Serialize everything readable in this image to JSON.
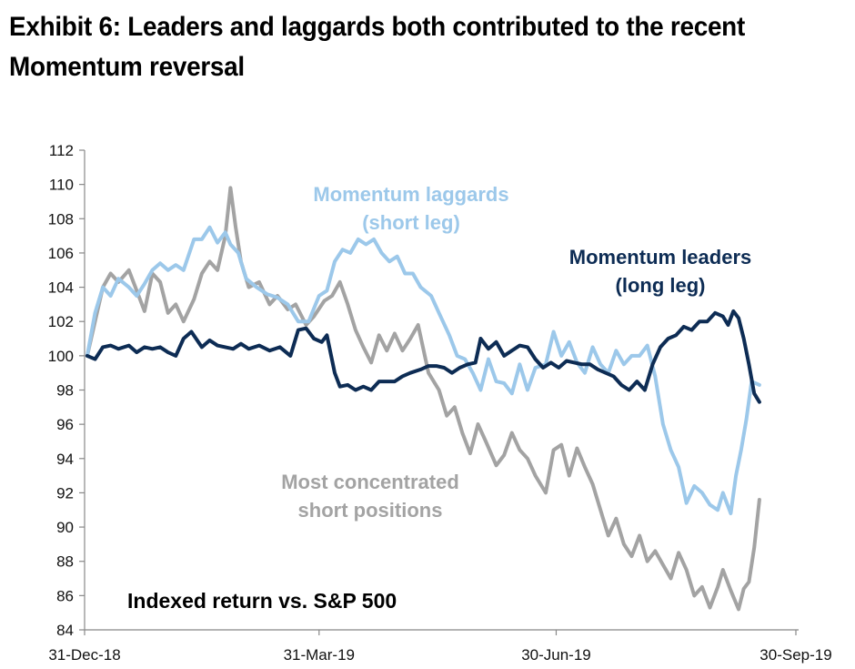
{
  "title_lines": [
    "Exhibit 6: Leaders and laggards both contributed to the recent",
    "Momentum reversal"
  ],
  "chart_data": {
    "type": "line",
    "subtitle": "Indexed return vs. S&P 500",
    "x_tick_labels": [
      "31-Dec-18",
      "31-Mar-19",
      "30-Jun-19",
      "30-Sep-19"
    ],
    "xlim": [
      "2018-12-31",
      "2019-09-30"
    ],
    "ylim": [
      84,
      112
    ],
    "y_ticks": [
      84,
      86,
      88,
      90,
      92,
      94,
      96,
      98,
      100,
      102,
      104,
      106,
      108,
      110,
      112
    ],
    "grid": false,
    "colors": {
      "leaders": "#0d2c54",
      "laggards": "#9cc8ea",
      "short": "#a3a3a3"
    },
    "annotations": [
      {
        "series": "laggards",
        "lines": [
          "Momentum laggards",
          "(short leg)"
        ]
      },
      {
        "series": "leaders",
        "lines": [
          "Momentum leaders",
          "(long leg)"
        ]
      },
      {
        "series": "short",
        "lines": [
          "Most concentrated",
          "short positions"
        ]
      }
    ],
    "series": [
      {
        "id": "short",
        "points": [
          [
            "2019-01-01",
            100.0
          ],
          [
            "2019-01-04",
            102.0
          ],
          [
            "2019-01-07",
            104.0
          ],
          [
            "2019-01-10",
            104.8
          ],
          [
            "2019-01-13",
            104.3
          ],
          [
            "2019-01-17",
            105.0
          ],
          [
            "2019-01-20",
            103.8
          ],
          [
            "2019-01-23",
            102.6
          ],
          [
            "2019-01-26",
            104.8
          ],
          [
            "2019-01-29",
            104.3
          ],
          [
            "2019-02-01",
            102.5
          ],
          [
            "2019-02-04",
            103.0
          ],
          [
            "2019-02-07",
            102.0
          ],
          [
            "2019-02-11",
            103.3
          ],
          [
            "2019-02-14",
            104.8
          ],
          [
            "2019-02-17",
            105.5
          ],
          [
            "2019-02-20",
            105.0
          ],
          [
            "2019-02-23",
            107.0
          ],
          [
            "2019-02-25",
            109.8
          ],
          [
            "2019-02-27",
            107.5
          ],
          [
            "2019-03-01",
            105.5
          ],
          [
            "2019-03-04",
            104.0
          ],
          [
            "2019-03-08",
            104.3
          ],
          [
            "2019-03-12",
            103.0
          ],
          [
            "2019-03-15",
            103.5
          ],
          [
            "2019-03-19",
            102.7
          ],
          [
            "2019-03-22",
            103.0
          ],
          [
            "2019-03-26",
            101.8
          ],
          [
            "2019-03-29",
            102.3
          ],
          [
            "2019-04-02",
            103.2
          ],
          [
            "2019-04-05",
            103.5
          ],
          [
            "2019-04-08",
            104.3
          ],
          [
            "2019-04-11",
            103.0
          ],
          [
            "2019-04-14",
            101.5
          ],
          [
            "2019-04-17",
            100.5
          ],
          [
            "2019-04-20",
            99.6
          ],
          [
            "2019-04-23",
            101.2
          ],
          [
            "2019-04-26",
            100.3
          ],
          [
            "2019-04-29",
            101.3
          ],
          [
            "2019-05-02",
            100.3
          ],
          [
            "2019-05-05",
            101.0
          ],
          [
            "2019-05-08",
            101.8
          ],
          [
            "2019-05-12",
            99.0
          ],
          [
            "2019-05-16",
            98.0
          ],
          [
            "2019-05-19",
            96.5
          ],
          [
            "2019-05-22",
            97.0
          ],
          [
            "2019-05-25",
            95.5
          ],
          [
            "2019-05-28",
            94.3
          ],
          [
            "2019-05-31",
            96.0
          ],
          [
            "2019-06-03",
            95.0
          ],
          [
            "2019-06-07",
            93.6
          ],
          [
            "2019-06-10",
            94.2
          ],
          [
            "2019-06-13",
            95.5
          ],
          [
            "2019-06-16",
            94.5
          ],
          [
            "2019-06-19",
            94.0
          ],
          [
            "2019-06-22",
            93.0
          ],
          [
            "2019-06-26",
            92.0
          ],
          [
            "2019-06-29",
            94.5
          ],
          [
            "2019-07-02",
            94.8
          ],
          [
            "2019-07-05",
            93.0
          ],
          [
            "2019-07-08",
            94.6
          ],
          [
            "2019-07-11",
            93.5
          ],
          [
            "2019-07-14",
            92.5
          ],
          [
            "2019-07-17",
            91.0
          ],
          [
            "2019-07-20",
            89.5
          ],
          [
            "2019-07-23",
            90.5
          ],
          [
            "2019-07-26",
            89.0
          ],
          [
            "2019-07-29",
            88.3
          ],
          [
            "2019-08-01",
            89.5
          ],
          [
            "2019-08-04",
            88.0
          ],
          [
            "2019-08-07",
            88.6
          ],
          [
            "2019-08-10",
            87.8
          ],
          [
            "2019-08-13",
            87.0
          ],
          [
            "2019-08-16",
            88.5
          ],
          [
            "2019-08-19",
            87.5
          ],
          [
            "2019-08-22",
            86.0
          ],
          [
            "2019-08-25",
            86.5
          ],
          [
            "2019-08-28",
            85.3
          ],
          [
            "2019-08-31",
            86.5
          ],
          [
            "2019-09-02",
            87.5
          ],
          [
            "2019-09-05",
            86.3
          ],
          [
            "2019-09-08",
            85.2
          ],
          [
            "2019-09-10",
            86.4
          ],
          [
            "2019-09-12",
            86.8
          ],
          [
            "2019-09-14",
            88.8
          ],
          [
            "2019-09-16",
            91.6
          ]
        ]
      },
      {
        "id": "laggards",
        "points": [
          [
            "2019-01-01",
            100.0
          ],
          [
            "2019-01-04",
            102.5
          ],
          [
            "2019-01-07",
            104.0
          ],
          [
            "2019-01-10",
            103.5
          ],
          [
            "2019-01-13",
            104.5
          ],
          [
            "2019-01-17",
            104.0
          ],
          [
            "2019-01-20",
            103.5
          ],
          [
            "2019-01-23",
            104.2
          ],
          [
            "2019-01-26",
            105.0
          ],
          [
            "2019-01-29",
            105.4
          ],
          [
            "2019-02-01",
            105.0
          ],
          [
            "2019-02-04",
            105.3
          ],
          [
            "2019-02-07",
            105.0
          ],
          [
            "2019-02-11",
            106.8
          ],
          [
            "2019-02-14",
            106.8
          ],
          [
            "2019-02-17",
            107.5
          ],
          [
            "2019-02-20",
            106.6
          ],
          [
            "2019-02-23",
            107.2
          ],
          [
            "2019-02-25",
            106.5
          ],
          [
            "2019-02-28",
            106.0
          ],
          [
            "2019-03-03",
            104.5
          ],
          [
            "2019-03-07",
            104.0
          ],
          [
            "2019-03-11",
            103.6
          ],
          [
            "2019-03-15",
            103.4
          ],
          [
            "2019-03-19",
            103.0
          ],
          [
            "2019-03-23",
            102.0
          ],
          [
            "2019-03-27",
            102.0
          ],
          [
            "2019-03-31",
            103.5
          ],
          [
            "2019-04-03",
            103.8
          ],
          [
            "2019-04-06",
            105.5
          ],
          [
            "2019-04-09",
            106.2
          ],
          [
            "2019-04-12",
            106.0
          ],
          [
            "2019-04-15",
            106.8
          ],
          [
            "2019-04-18",
            106.5
          ],
          [
            "2019-04-21",
            106.8
          ],
          [
            "2019-04-24",
            106.0
          ],
          [
            "2019-04-27",
            105.5
          ],
          [
            "2019-04-30",
            105.8
          ],
          [
            "2019-05-03",
            104.8
          ],
          [
            "2019-05-06",
            104.8
          ],
          [
            "2019-05-09",
            104.0
          ],
          [
            "2019-05-13",
            103.5
          ],
          [
            "2019-05-16",
            102.5
          ],
          [
            "2019-05-20",
            101.2
          ],
          [
            "2019-05-23",
            100.0
          ],
          [
            "2019-05-26",
            99.8
          ],
          [
            "2019-05-29",
            99.0
          ],
          [
            "2019-06-01",
            98.0
          ],
          [
            "2019-06-04",
            99.8
          ],
          [
            "2019-06-07",
            98.5
          ],
          [
            "2019-06-10",
            98.4
          ],
          [
            "2019-06-13",
            97.8
          ],
          [
            "2019-06-16",
            99.5
          ],
          [
            "2019-06-19",
            98.0
          ],
          [
            "2019-06-22",
            99.3
          ],
          [
            "2019-06-26",
            99.5
          ],
          [
            "2019-06-29",
            101.4
          ],
          [
            "2019-07-02",
            100.0
          ],
          [
            "2019-07-05",
            100.8
          ],
          [
            "2019-07-08",
            99.6
          ],
          [
            "2019-07-11",
            99.0
          ],
          [
            "2019-07-14",
            100.5
          ],
          [
            "2019-07-17",
            99.5
          ],
          [
            "2019-07-20",
            99.0
          ],
          [
            "2019-07-23",
            100.3
          ],
          [
            "2019-07-26",
            99.5
          ],
          [
            "2019-07-29",
            100.0
          ],
          [
            "2019-08-01",
            100.0
          ],
          [
            "2019-08-04",
            100.6
          ],
          [
            "2019-08-07",
            98.8
          ],
          [
            "2019-08-10",
            96.0
          ],
          [
            "2019-08-13",
            94.5
          ],
          [
            "2019-08-16",
            93.5
          ],
          [
            "2019-08-19",
            91.4
          ],
          [
            "2019-08-22",
            92.4
          ],
          [
            "2019-08-25",
            92.0
          ],
          [
            "2019-08-28",
            91.3
          ],
          [
            "2019-08-31",
            91.0
          ],
          [
            "2019-09-02",
            92.0
          ],
          [
            "2019-09-05",
            90.8
          ],
          [
            "2019-09-07",
            93.0
          ],
          [
            "2019-09-09",
            94.5
          ],
          [
            "2019-09-11",
            96.3
          ],
          [
            "2019-09-13",
            98.5
          ],
          [
            "2019-09-16",
            98.3
          ]
        ]
      },
      {
        "id": "leaders",
        "points": [
          [
            "2019-01-01",
            100.0
          ],
          [
            "2019-01-04",
            99.8
          ],
          [
            "2019-01-07",
            100.5
          ],
          [
            "2019-01-10",
            100.6
          ],
          [
            "2019-01-13",
            100.4
          ],
          [
            "2019-01-17",
            100.6
          ],
          [
            "2019-01-20",
            100.2
          ],
          [
            "2019-01-23",
            100.5
          ],
          [
            "2019-01-26",
            100.4
          ],
          [
            "2019-01-29",
            100.5
          ],
          [
            "2019-02-01",
            100.2
          ],
          [
            "2019-02-04",
            100.0
          ],
          [
            "2019-02-07",
            101.0
          ],
          [
            "2019-02-10",
            101.4
          ],
          [
            "2019-02-14",
            100.5
          ],
          [
            "2019-02-17",
            100.9
          ],
          [
            "2019-02-20",
            100.6
          ],
          [
            "2019-02-23",
            100.5
          ],
          [
            "2019-02-26",
            100.4
          ],
          [
            "2019-03-01",
            100.7
          ],
          [
            "2019-03-04",
            100.4
          ],
          [
            "2019-03-08",
            100.6
          ],
          [
            "2019-03-12",
            100.3
          ],
          [
            "2019-03-16",
            100.5
          ],
          [
            "2019-03-20",
            100.0
          ],
          [
            "2019-03-23",
            101.5
          ],
          [
            "2019-03-26",
            101.6
          ],
          [
            "2019-03-29",
            101.0
          ],
          [
            "2019-04-01",
            100.8
          ],
          [
            "2019-04-03",
            101.2
          ],
          [
            "2019-04-06",
            99.0
          ],
          [
            "2019-04-08",
            98.2
          ],
          [
            "2019-04-11",
            98.3
          ],
          [
            "2019-04-14",
            98.0
          ],
          [
            "2019-04-17",
            98.2
          ],
          [
            "2019-04-20",
            98.0
          ],
          [
            "2019-04-23",
            98.5
          ],
          [
            "2019-04-26",
            98.5
          ],
          [
            "2019-04-29",
            98.5
          ],
          [
            "2019-05-02",
            98.8
          ],
          [
            "2019-05-05",
            99.0
          ],
          [
            "2019-05-09",
            99.2
          ],
          [
            "2019-05-12",
            99.4
          ],
          [
            "2019-05-15",
            99.4
          ],
          [
            "2019-05-18",
            99.3
          ],
          [
            "2019-05-21",
            99.0
          ],
          [
            "2019-05-24",
            99.3
          ],
          [
            "2019-05-27",
            99.5
          ],
          [
            "2019-05-30",
            99.6
          ],
          [
            "2019-06-01",
            101.0
          ],
          [
            "2019-06-04",
            100.4
          ],
          [
            "2019-06-07",
            100.8
          ],
          [
            "2019-06-10",
            100.0
          ],
          [
            "2019-06-13",
            100.3
          ],
          [
            "2019-06-16",
            100.6
          ],
          [
            "2019-06-19",
            100.5
          ],
          [
            "2019-06-22",
            99.8
          ],
          [
            "2019-06-25",
            99.3
          ],
          [
            "2019-06-28",
            99.6
          ],
          [
            "2019-07-01",
            99.3
          ],
          [
            "2019-07-04",
            99.7
          ],
          [
            "2019-07-07",
            99.6
          ],
          [
            "2019-07-10",
            99.5
          ],
          [
            "2019-07-13",
            99.5
          ],
          [
            "2019-07-16",
            99.2
          ],
          [
            "2019-07-19",
            99.0
          ],
          [
            "2019-07-22",
            98.8
          ],
          [
            "2019-07-25",
            98.3
          ],
          [
            "2019-07-28",
            98.0
          ],
          [
            "2019-07-31",
            98.5
          ],
          [
            "2019-08-03",
            98.0
          ],
          [
            "2019-08-06",
            99.5
          ],
          [
            "2019-08-09",
            100.5
          ],
          [
            "2019-08-12",
            101.0
          ],
          [
            "2019-08-15",
            101.2
          ],
          [
            "2019-08-18",
            101.7
          ],
          [
            "2019-08-21",
            101.5
          ],
          [
            "2019-08-24",
            102.0
          ],
          [
            "2019-08-27",
            102.0
          ],
          [
            "2019-08-30",
            102.5
          ],
          [
            "2019-09-02",
            102.3
          ],
          [
            "2019-09-04",
            101.8
          ],
          [
            "2019-09-06",
            102.6
          ],
          [
            "2019-09-08",
            102.2
          ],
          [
            "2019-09-10",
            101.0
          ],
          [
            "2019-09-12",
            99.5
          ],
          [
            "2019-09-14",
            97.8
          ],
          [
            "2019-09-16",
            97.3
          ]
        ]
      }
    ]
  }
}
